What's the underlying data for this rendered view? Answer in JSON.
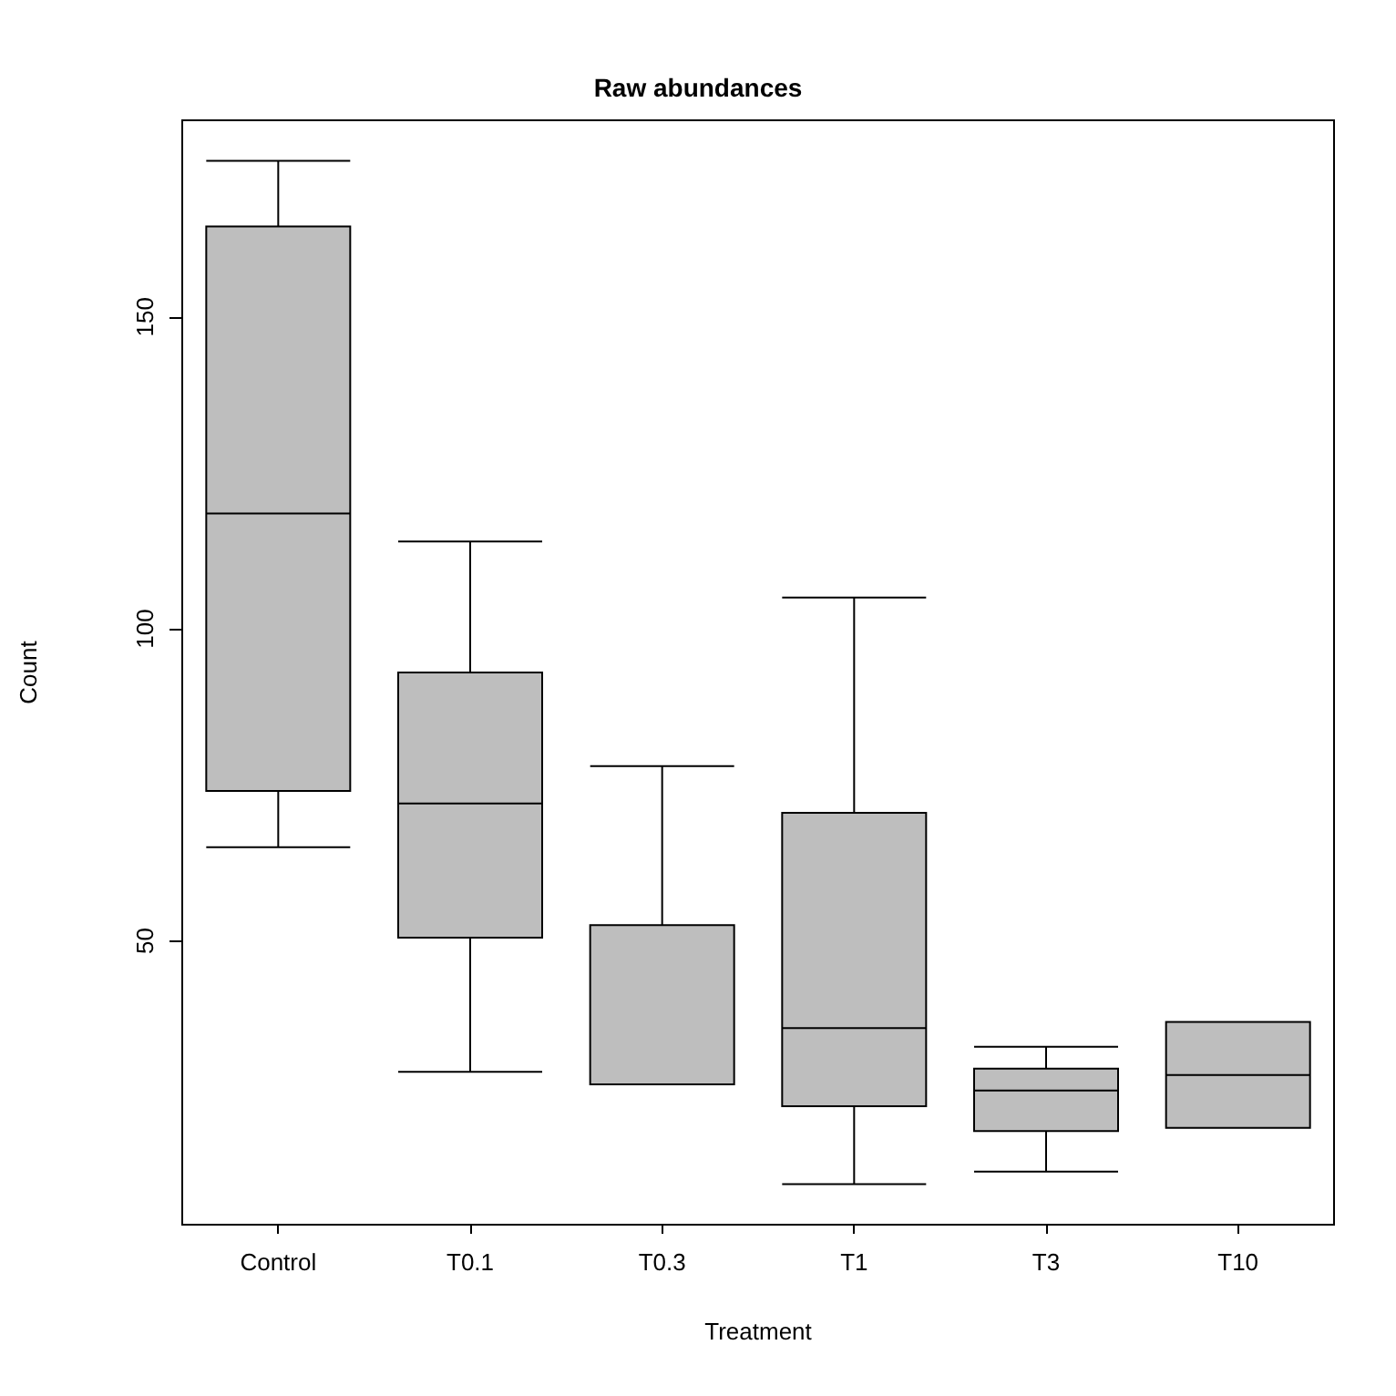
{
  "chart_data": {
    "type": "box",
    "title": "Raw abundances",
    "xlabel": "Treatment",
    "ylabel": "Count",
    "categories": [
      "Control",
      "T0.1",
      "T0.3",
      "T1",
      "T3",
      "T10"
    ],
    "series": [
      {
        "color": "#bebebe",
        "boxes": [
          {
            "low": 65,
            "q1": 74,
            "median": 118.5,
            "q3": 164.5,
            "high": 175
          },
          {
            "low": 29,
            "q1": 50.5,
            "median": 72,
            "q3": 93,
            "high": 114
          },
          {
            "low": 27,
            "q1": 27,
            "median": 27,
            "q3": 52.5,
            "high": 78
          },
          {
            "low": 11,
            "q1": 23.5,
            "median": 36,
            "q3": 70.5,
            "high": 105
          },
          {
            "low": 13,
            "q1": 19.5,
            "median": 26,
            "q3": 29.5,
            "high": 33
          },
          {
            "low": 20,
            "q1": 20,
            "median": 28.5,
            "q3": 37,
            "high": 37
          }
        ]
      }
    ],
    "ylim": [
      4.5,
      181.5
    ],
    "yticks": [
      50,
      100,
      150
    ]
  }
}
